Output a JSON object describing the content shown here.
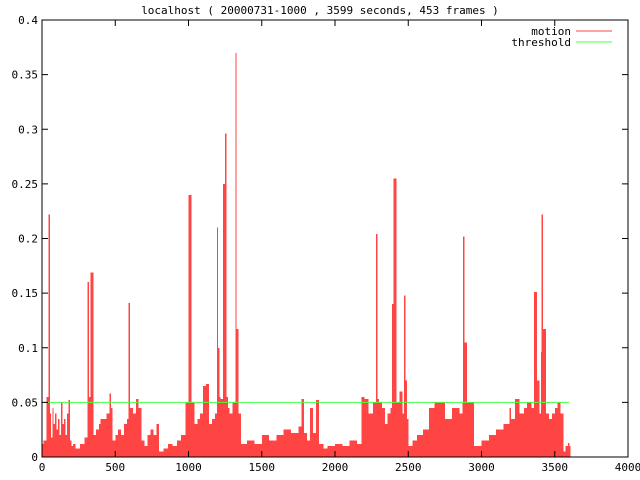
{
  "chart_data": {
    "type": "area",
    "title": "localhost ( 20000731-1000 , 3599 seconds, 453 frames )",
    "xlabel": "",
    "ylabel": "",
    "xlim": [
      0,
      4000
    ],
    "ylim": [
      0,
      0.4
    ],
    "grid": false,
    "legend_placement": "top-right",
    "x_ticks": [
      "0",
      "500",
      "1000",
      "1500",
      "2000",
      "2500",
      "3000",
      "3500",
      "4000"
    ],
    "y_ticks": [
      "0",
      "0.05",
      "0.1",
      "0.15",
      "0.2",
      "0.25",
      "0.3",
      "0.35",
      "0.4"
    ],
    "series": [
      {
        "name": "motion",
        "color": "#ff4444",
        "kind": "impulses",
        "x": [
          0,
          10,
          30,
          45,
          55,
          60,
          70,
          80,
          90,
          100,
          110,
          120,
          130,
          140,
          150,
          160,
          170,
          180,
          190,
          200,
          210,
          230,
          260,
          290,
          310,
          320,
          330,
          350,
          370,
          390,
          400,
          420,
          440,
          460,
          470,
          480,
          500,
          520,
          540,
          560,
          580,
          590,
          600,
          620,
          640,
          660,
          680,
          700,
          720,
          740,
          760,
          780,
          800,
          830,
          860,
          890,
          920,
          950,
          980,
          1000,
          1020,
          1040,
          1060,
          1080,
          1100,
          1120,
          1140,
          1160,
          1180,
          1195,
          1200,
          1210,
          1220,
          1235,
          1250,
          1260,
          1270,
          1280,
          1300,
          1320,
          1325,
          1340,
          1360,
          1400,
          1450,
          1500,
          1550,
          1600,
          1650,
          1700,
          1750,
          1770,
          1790,
          1810,
          1830,
          1850,
          1870,
          1890,
          1920,
          1950,
          2000,
          2050,
          2100,
          2150,
          2180,
          2200,
          2230,
          2260,
          2280,
          2290,
          2300,
          2320,
          2340,
          2360,
          2380,
          2390,
          2400,
          2420,
          2440,
          2460,
          2470,
          2480,
          2490,
          2500,
          2530,
          2560,
          2600,
          2640,
          2680,
          2700,
          2750,
          2800,
          2850,
          2870,
          2875,
          2885,
          2900,
          2950,
          3000,
          3050,
          3100,
          3150,
          3190,
          3200,
          3230,
          3260,
          3290,
          3310,
          3340,
          3360,
          3380,
          3395,
          3405,
          3410,
          3420,
          3440,
          3460,
          3480,
          3500,
          3520,
          3540,
          3560,
          3575,
          3590,
          3599
        ],
        "y": [
          0.012,
          0.015,
          0.055,
          0.222,
          0.04,
          0.018,
          0.045,
          0.03,
          0.04,
          0.025,
          0.035,
          0.02,
          0.05,
          0.03,
          0.035,
          0.02,
          0.04,
          0.052,
          0.015,
          0.01,
          0.012,
          0.008,
          0.012,
          0.018,
          0.16,
          0.055,
          0.169,
          0.02,
          0.025,
          0.03,
          0.035,
          0.035,
          0.04,
          0.058,
          0.045,
          0.015,
          0.02,
          0.025,
          0.02,
          0.03,
          0.035,
          0.141,
          0.045,
          0.04,
          0.053,
          0.045,
          0.015,
          0.01,
          0.02,
          0.025,
          0.02,
          0.03,
          0.005,
          0.008,
          0.012,
          0.01,
          0.015,
          0.02,
          0.05,
          0.24,
          0.05,
          0.03,
          0.035,
          0.04,
          0.065,
          0.067,
          0.03,
          0.035,
          0.04,
          0.21,
          0.1,
          0.055,
          0.053,
          0.25,
          0.296,
          0.055,
          0.045,
          0.04,
          0.05,
          0.37,
          0.117,
          0.04,
          0.012,
          0.015,
          0.012,
          0.02,
          0.015,
          0.02,
          0.025,
          0.022,
          0.028,
          0.053,
          0.022,
          0.015,
          0.045,
          0.022,
          0.052,
          0.012,
          0.008,
          0.01,
          0.012,
          0.01,
          0.015,
          0.012,
          0.055,
          0.053,
          0.04,
          0.05,
          0.204,
          0.053,
          0.05,
          0.045,
          0.03,
          0.04,
          0.045,
          0.14,
          0.255,
          0.05,
          0.06,
          0.04,
          0.148,
          0.07,
          0.035,
          0.01,
          0.015,
          0.02,
          0.025,
          0.045,
          0.05,
          0.05,
          0.035,
          0.045,
          0.04,
          0.05,
          0.202,
          0.105,
          0.05,
          0.01,
          0.015,
          0.02,
          0.025,
          0.03,
          0.045,
          0.035,
          0.053,
          0.04,
          0.045,
          0.05,
          0.045,
          0.151,
          0.07,
          0.04,
          0.096,
          0.222,
          0.117,
          0.04,
          0.035,
          0.04,
          0.045,
          0.05,
          0.04,
          0.005,
          0.01,
          0.013,
          0.01
        ]
      },
      {
        "name": "threshold",
        "color": "#44ff44",
        "kind": "line",
        "x": [
          0,
          3599
        ],
        "y": [
          0.05,
          0.05
        ]
      }
    ]
  }
}
